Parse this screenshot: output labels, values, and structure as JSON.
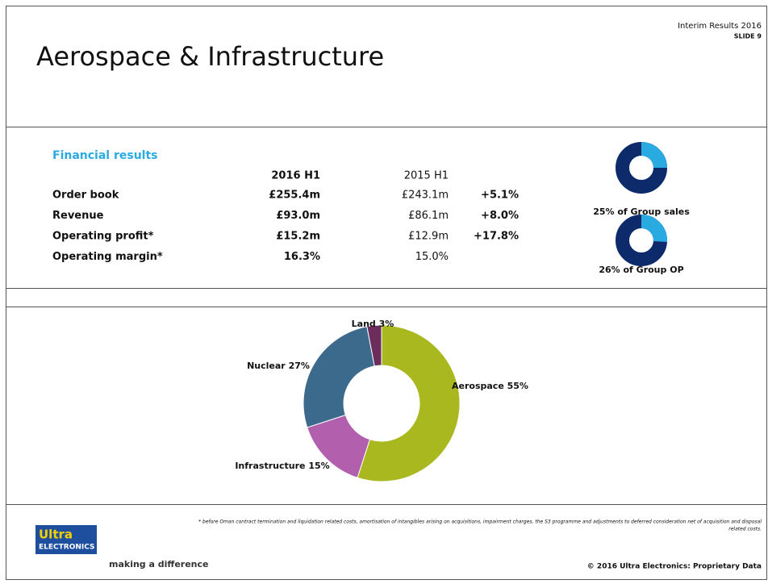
{
  "header": {
    "title": "Aerospace & Infrastructure",
    "meta": "Interim Results 2016",
    "slide": "SLIDE 9"
  },
  "financials": {
    "heading": "Financial results",
    "columns": [
      "2016 H1",
      "2015 H1"
    ],
    "rows": [
      [
        "Order book",
        "£255.4m",
        "£243.1m",
        "+5.1%"
      ],
      [
        "Revenue",
        "£93.0m",
        "£86.1m",
        "+8.0%"
      ],
      [
        "Operating profit*",
        "£15.2m",
        "£12.9m",
        "+17.8%"
      ],
      [
        "Operating margin*",
        "16.3%",
        "15.0%"
      ]
    ]
  },
  "chart_data": [
    {
      "type": "pie",
      "title": "25% of Group sales",
      "values": [
        25
      ],
      "color": "#29abe2",
      "background": "#0d2a6b"
    },
    {
      "type": "pie",
      "title": "26% of Group OP",
      "values": [
        26
      ],
      "color": "#29abe2",
      "background": "#0d2a6b"
    },
    {
      "type": "pie",
      "categories": [
        "Aerospace",
        "Infrastructure",
        "Nuclear",
        "Land"
      ],
      "values": [
        55,
        15,
        27,
        3
      ],
      "value_labels": [
        "55%",
        "15%",
        "27%",
        "3%"
      ],
      "colors": [
        "#a9b81f",
        "#b25fae",
        "#3b6a8c",
        "#6c2d5c"
      ]
    }
  ],
  "footer": {
    "footnote": "* before Oman contract termination and liquidation related costs, amortisation of intangibles arising on acquisitions, impairment charges, the S3 programme and adjustments to deferred consideration net of acquisition and disposal",
    "footnote2": "related costs.",
    "logo": "Ultra",
    "logo_sub": "ELECTRONICS",
    "tagline": "making a difference",
    "copyright": "© 2016 Ultra Electronics: Proprietary Data"
  }
}
